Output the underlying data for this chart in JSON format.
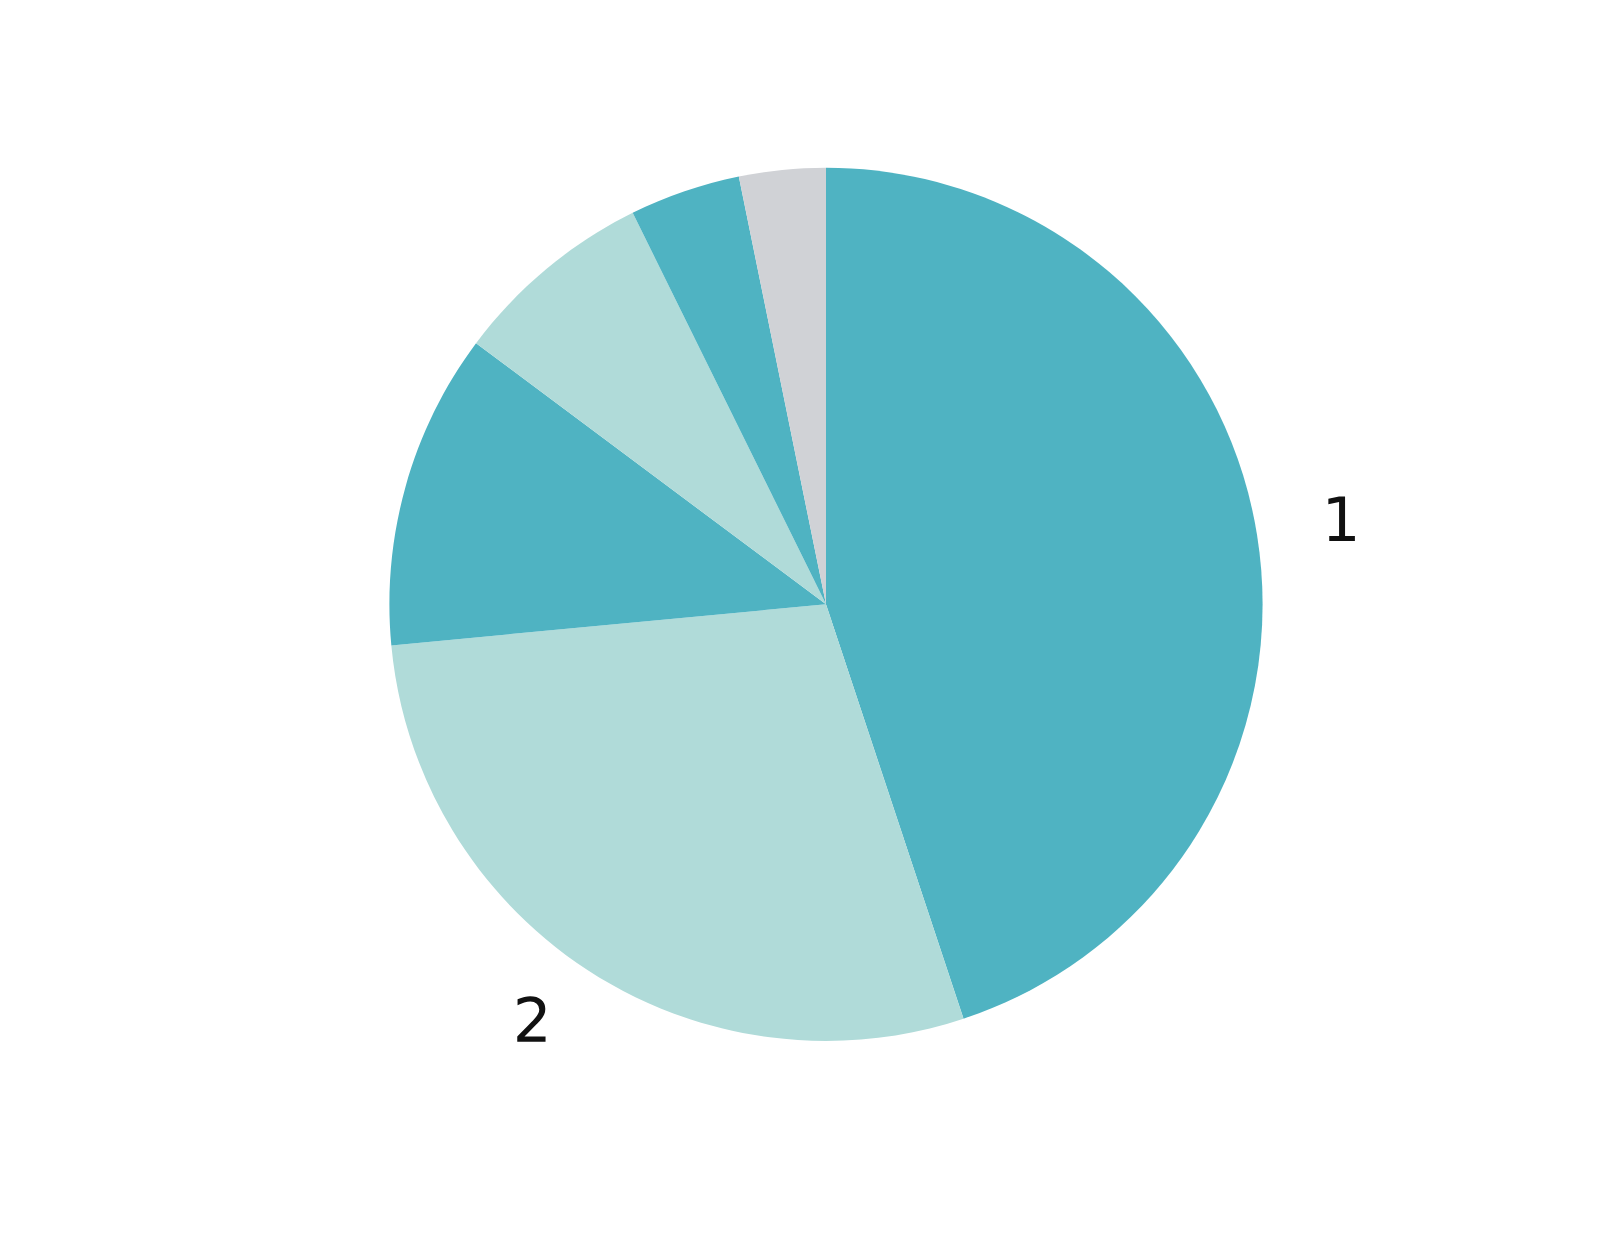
{
  "chart_data": {
    "type": "pie",
    "categories": [
      "1",
      "2",
      null,
      null,
      null,
      null
    ],
    "values": [
      44.9,
      28.6,
      11.7,
      7.5,
      4.1,
      3.2
    ],
    "colors": [
      "#4fb3c2",
      "#b0dbd9",
      "#4fb3c2",
      "#b0dbd9",
      "#4fb3c2",
      "#d0d2d6"
    ]
  }
}
